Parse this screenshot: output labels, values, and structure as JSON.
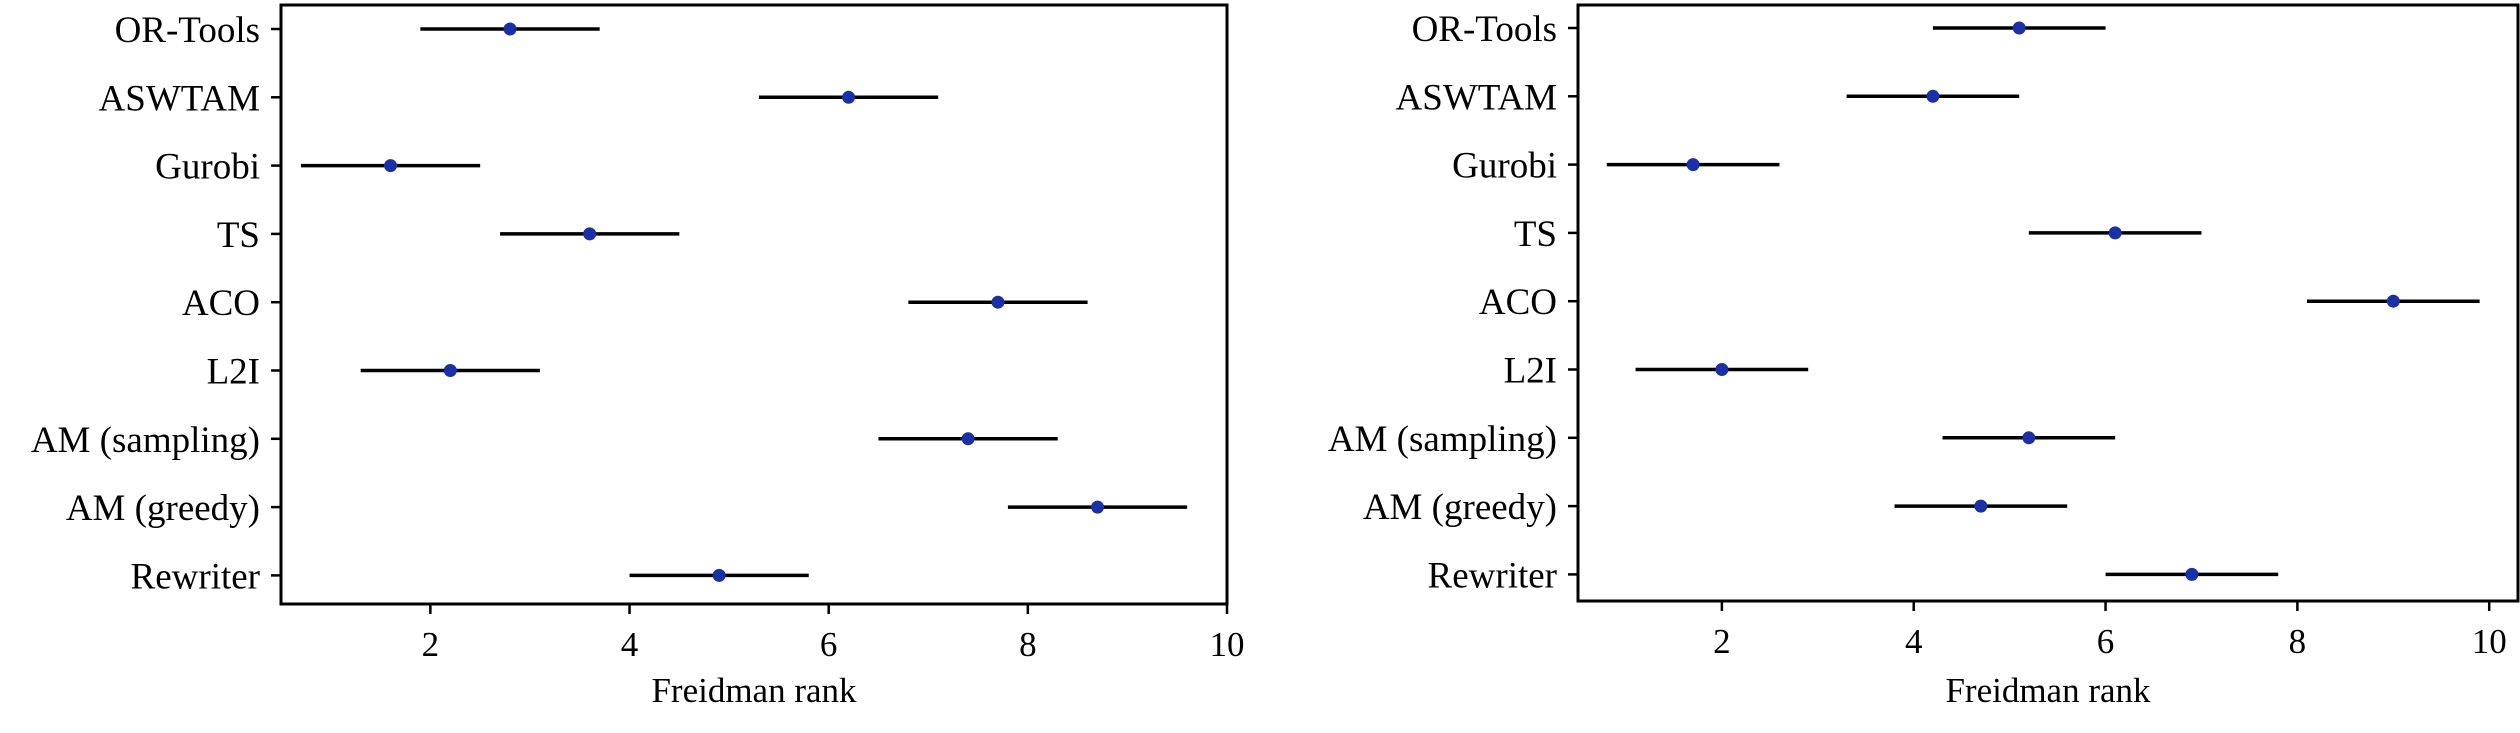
{
  "chart_data": [
    {
      "type": "scatter",
      "subtype": "confidence-interval-dot-plot",
      "title": "",
      "xlabel": "Freidman rank",
      "ylabel": "",
      "xlim": [
        0.5,
        10
      ],
      "xticks": [
        2,
        4,
        6,
        8,
        10
      ],
      "grid": false,
      "legend": "none",
      "marker_color": "#1b2fa6",
      "interval_color": "#000000",
      "categories": [
        "OR-Tools",
        "ASWTAM",
        "Gurobi",
        "TS",
        "ACO",
        "L2I",
        "AM (sampling)",
        "AM (greedy)",
        "Rewriter"
      ],
      "values": [
        2.8,
        6.2,
        1.6,
        3.6,
        7.7,
        2.2,
        7.4,
        8.7,
        4.9
      ],
      "lower": [
        1.9,
        5.3,
        0.7,
        2.7,
        6.8,
        1.3,
        6.5,
        7.8,
        4.0
      ],
      "upper": [
        3.7,
        7.1,
        2.5,
        4.5,
        8.6,
        3.1,
        8.3,
        9.6,
        5.8
      ]
    },
    {
      "type": "scatter",
      "subtype": "confidence-interval-dot-plot",
      "title": "",
      "xlabel": "Freidman rank",
      "ylabel": "",
      "xlim": [
        0.5,
        10.3
      ],
      "xticks": [
        2,
        4,
        6,
        8,
        10
      ],
      "grid": false,
      "legend": "none",
      "marker_color": "#1b2fa6",
      "interval_color": "#000000",
      "categories": [
        "OR-Tools",
        "ASWTAM",
        "Gurobi",
        "TS",
        "ACO",
        "L2I",
        "AM (sampling)",
        "AM (greedy)",
        "Rewriter"
      ],
      "values": [
        5.1,
        4.2,
        1.7,
        6.1,
        9.0,
        2.0,
        5.2,
        4.7,
        6.9
      ],
      "lower": [
        4.2,
        3.3,
        0.8,
        5.2,
        8.1,
        1.1,
        4.3,
        3.8,
        6.0
      ],
      "upper": [
        6.0,
        5.1,
        2.6,
        7.0,
        9.9,
        2.9,
        6.1,
        5.6,
        7.8
      ]
    }
  ]
}
